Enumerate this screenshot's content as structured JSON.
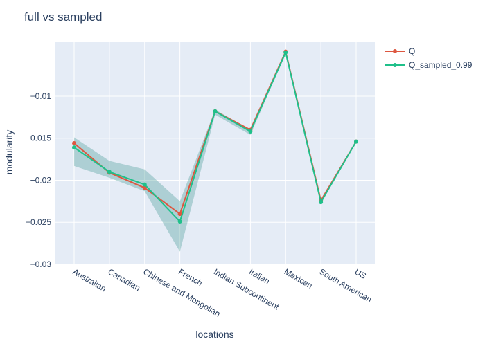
{
  "chart_data": {
    "type": "line",
    "title": "full vs sampled",
    "xlabel": "locations",
    "ylabel": "modularity",
    "categories": [
      "Australian",
      "Canadian",
      "Chinese and Mongolian",
      "French",
      "Indian Subcontinent",
      "Italian",
      "Mexican",
      "South American",
      "US"
    ],
    "ylim": [
      -0.03,
      -0.0035
    ],
    "yticks": [
      -0.01,
      -0.015,
      -0.02,
      -0.025,
      -0.03
    ],
    "ytick_labels": [
      "−0.01",
      "−0.015",
      "−0.02",
      "−0.025",
      "−0.03"
    ],
    "grid": true,
    "legend": "top-right",
    "series": [
      {
        "name": "Q",
        "color": "#dd5740",
        "values": [
          -0.0156,
          -0.0191,
          -0.0209,
          -0.024,
          -0.0118,
          -0.014,
          -0.0047,
          -0.0224,
          -0.0154
        ]
      },
      {
        "name": "Q_sampled_0.99",
        "color": "#1fc08a",
        "values": [
          -0.0161,
          -0.019,
          -0.0205,
          -0.0249,
          -0.0118,
          -0.0142,
          -0.0048,
          -0.0226,
          -0.0154
        ],
        "band_upper": [
          -0.0149,
          -0.0177,
          -0.0187,
          -0.0225,
          -0.0116,
          -0.014,
          -0.0046,
          -0.0224,
          -0.0153
        ],
        "band_lower": [
          -0.0183,
          -0.0197,
          -0.0213,
          -0.0285,
          -0.0122,
          -0.0146,
          -0.005,
          -0.0228,
          -0.0155
        ],
        "band_color": "#2a8a84"
      }
    ]
  }
}
